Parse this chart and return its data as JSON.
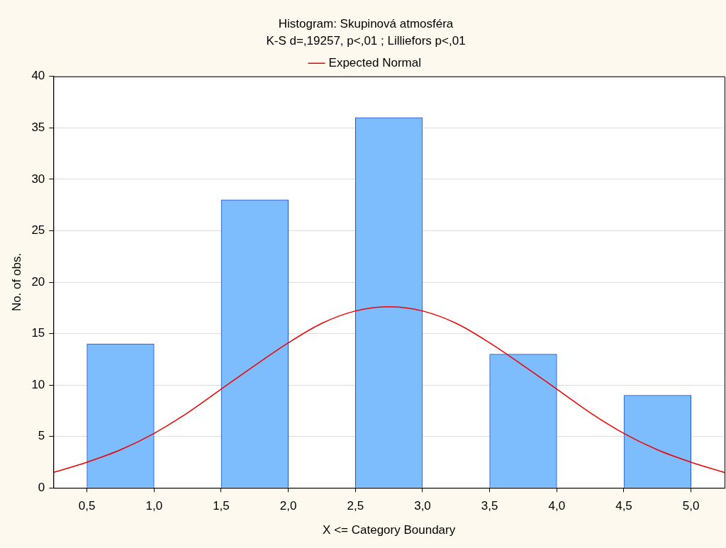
{
  "chart_data": {
    "type": "histogram",
    "title": "Histogram: Skupinová atmosféra",
    "subtitle": "K-S d=,19257, p<,01 ; Lilliefors p<,01",
    "xlabel": "X <= Category Boundary",
    "ylabel": "No. of obs.",
    "bins": [
      0.5,
      1.0,
      1.5,
      2.0,
      2.5,
      3.0,
      3.5,
      4.0,
      4.5,
      5.0
    ],
    "values": [
      14,
      0,
      28,
      0,
      36,
      0,
      13,
      0,
      9
    ],
    "color": "#7dbcfd",
    "series": [
      {
        "name": "Expected Normal",
        "type": "line",
        "color": "#ee0000",
        "x": [
          0.25,
          0.5,
          0.75,
          1.0,
          1.25,
          1.5,
          1.75,
          2.0,
          2.25,
          2.5,
          2.75,
          3.0,
          3.25,
          3.5,
          3.75,
          4.0,
          4.25,
          4.5,
          4.75,
          5.0,
          5.25
        ],
        "values": [
          1.5,
          2.5,
          3.7,
          5.3,
          7.3,
          9.6,
          11.9,
          14.1,
          16.0,
          17.2,
          17.6,
          17.2,
          16.0,
          14.1,
          11.9,
          9.6,
          7.3,
          5.3,
          3.7,
          2.5,
          1.5
        ]
      }
    ],
    "xlim": [
      0.25,
      5.25
    ],
    "xticks": [
      {
        "value": 0.5,
        "label": "0,5"
      },
      {
        "value": 1.0,
        "label": "1,0"
      },
      {
        "value": 1.5,
        "label": "1,5"
      },
      {
        "value": 2.0,
        "label": "2,0"
      },
      {
        "value": 2.5,
        "label": "2,5"
      },
      {
        "value": 3.0,
        "label": "3,0"
      },
      {
        "value": 3.5,
        "label": "3,5"
      },
      {
        "value": 4.0,
        "label": "4,0"
      },
      {
        "value": 4.5,
        "label": "4,5"
      },
      {
        "value": 5.0,
        "label": "5,0"
      }
    ],
    "ylim": [
      0,
      40
    ],
    "yticks": [
      0,
      5,
      10,
      15,
      20,
      25,
      30,
      35,
      40
    ],
    "grid": "y",
    "legend": "top",
    "marker": "none",
    "line_style": "solid"
  }
}
